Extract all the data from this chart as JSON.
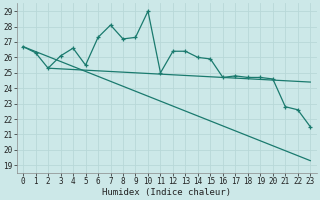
{
  "xlabel": "Humidex (Indice chaleur)",
  "bg_color": "#cce8e8",
  "line_color": "#1a7a6e",
  "grid_color": "#b8d8d8",
  "xlim": [
    -0.5,
    23.5
  ],
  "ylim": [
    18.5,
    29.5
  ],
  "yticks": [
    19,
    20,
    21,
    22,
    23,
    24,
    25,
    26,
    27,
    28,
    29
  ],
  "xticks": [
    0,
    1,
    2,
    3,
    4,
    5,
    6,
    7,
    8,
    9,
    10,
    11,
    12,
    13,
    14,
    15,
    16,
    17,
    18,
    19,
    20,
    21,
    22,
    23
  ],
  "line1_x": [
    0,
    1,
    2,
    3,
    4,
    5,
    6,
    7,
    8,
    9,
    10,
    11,
    12,
    13,
    14,
    15,
    16,
    17,
    18,
    19,
    20,
    21,
    22,
    23
  ],
  "line1_y": [
    26.7,
    26.3,
    25.3,
    26.1,
    26.6,
    25.5,
    27.3,
    28.1,
    27.2,
    27.3,
    29.0,
    25.0,
    26.4,
    26.4,
    26.0,
    25.9,
    24.7,
    24.8,
    24.7,
    24.7,
    24.6,
    22.8,
    22.6,
    21.5
  ],
  "line2_x": [
    0,
    23
  ],
  "line2_y": [
    26.7,
    19.3
  ],
  "line3_x": [
    2,
    23
  ],
  "line3_y": [
    25.3,
    24.4
  ]
}
